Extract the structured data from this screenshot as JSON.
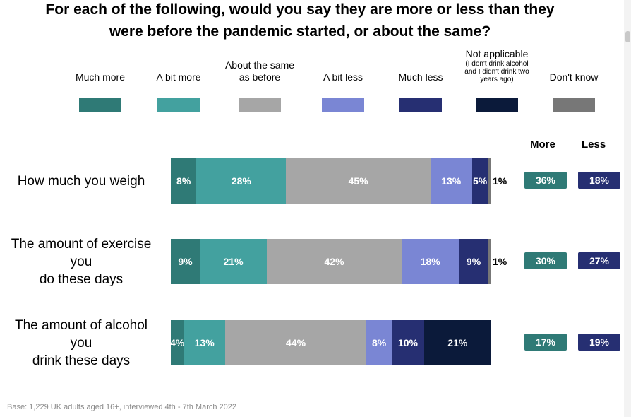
{
  "chart_data": {
    "type": "bar",
    "orientation": "horizontal-stacked",
    "title": "For each of the following, would you say they are more or less than they were before the pandemic started, or about the same?",
    "legend_position": "top",
    "series": [
      {
        "name": "Much more",
        "color": "#2f7a76"
      },
      {
        "name": "A bit more",
        "color": "#43a19f"
      },
      {
        "name": "About the same as before",
        "color": "#a6a6a6"
      },
      {
        "name": "A bit less",
        "color": "#7a86d4"
      },
      {
        "name": "Much less",
        "color": "#262f72"
      },
      {
        "name": "Not applicable",
        "note": "(I don't drink alcohol and I didn't drink two years ago)",
        "color": "#0b1a3a"
      },
      {
        "name": "Don't know",
        "color": "#777777"
      }
    ],
    "net_headers": {
      "more": "More",
      "less": "Less"
    },
    "net_colors": {
      "more": "#2f7a76",
      "less": "#262f72"
    },
    "rows": [
      {
        "label_lines": [
          "How much you weigh"
        ],
        "values": [
          8,
          28,
          45,
          13,
          5,
          0,
          1
        ],
        "labels": [
          "8%",
          "28%",
          "45%",
          "13%",
          "5%",
          "",
          "1%"
        ],
        "more": "36%",
        "less": "18%"
      },
      {
        "label_lines": [
          "The amount of exercise",
          "you",
          "do these days"
        ],
        "values": [
          9,
          21,
          42,
          18,
          9,
          0,
          1
        ],
        "labels": [
          "9%",
          "21%",
          "42%",
          "18%",
          "9%",
          "",
          "1%"
        ],
        "more": "30%",
        "less": "27%"
      },
      {
        "label_lines": [
          "The amount of alcohol",
          "you",
          "drink these days"
        ],
        "values": [
          4,
          13,
          44,
          8,
          10,
          21,
          0
        ],
        "labels": [
          "4%",
          "13%",
          "44%",
          "8%",
          "10%",
          "21%",
          ""
        ],
        "more": "17%",
        "less": "19%"
      }
    ]
  },
  "footnote": "Base: 1,229  UK adults aged 16+, interviewed 4th - 7th March 2022"
}
